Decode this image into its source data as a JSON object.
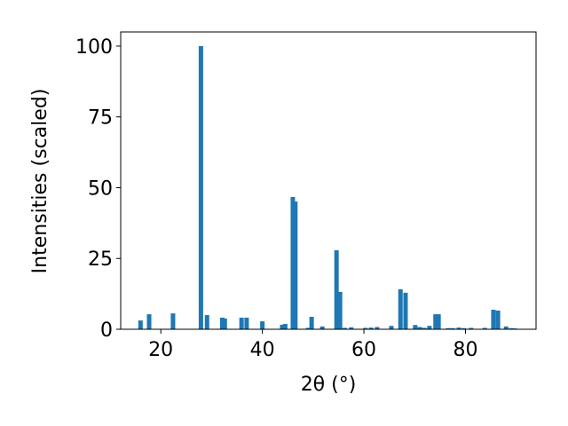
{
  "chart_data": {
    "type": "bar",
    "x_label": "2θ (°)",
    "y_label": "Intensities (scaled)",
    "x": [
      16.0,
      17.7,
      22.4,
      27.9,
      29.1,
      32.1,
      32.6,
      35.9,
      36.9,
      40.0,
      43.9,
      44.5,
      46.0,
      46.5,
      49.0,
      49.7,
      51.8,
      54.6,
      55.3,
      56.2,
      57.5,
      60.3,
      61.4,
      62.6,
      65.4,
      67.2,
      68.2,
      70.1,
      71.0,
      71.9,
      72.9,
      74.1,
      74.7,
      76.6,
      77.5,
      78.7,
      79.7,
      81.1,
      83.8,
      85.5,
      86.4,
      88.0,
      89.0,
      89.7
    ],
    "values": [
      3.1,
      5.3,
      5.6,
      100,
      5.0,
      4.1,
      3.8,
      4.1,
      4.1,
      2.8,
      1.6,
      1.9,
      46.7,
      45.1,
      0.5,
      4.4,
      1.0,
      27.9,
      13.2,
      0.5,
      0.7,
      0.5,
      0.6,
      0.8,
      1.2,
      14.1,
      12.9,
      1.5,
      0.8,
      0.5,
      1.2,
      5.3,
      5.3,
      0.4,
      0.4,
      0.6,
      0.4,
      0.5,
      0.5,
      6.9,
      6.6,
      1.0,
      0.4,
      0.3
    ],
    "color": "#1f77b4",
    "xlim": [
      12.1,
      93.9
    ],
    "ylim": [
      0,
      105
    ],
    "xticks": [
      20,
      40,
      60,
      80
    ],
    "yticks": [
      0,
      25,
      50,
      75,
      100
    ]
  }
}
